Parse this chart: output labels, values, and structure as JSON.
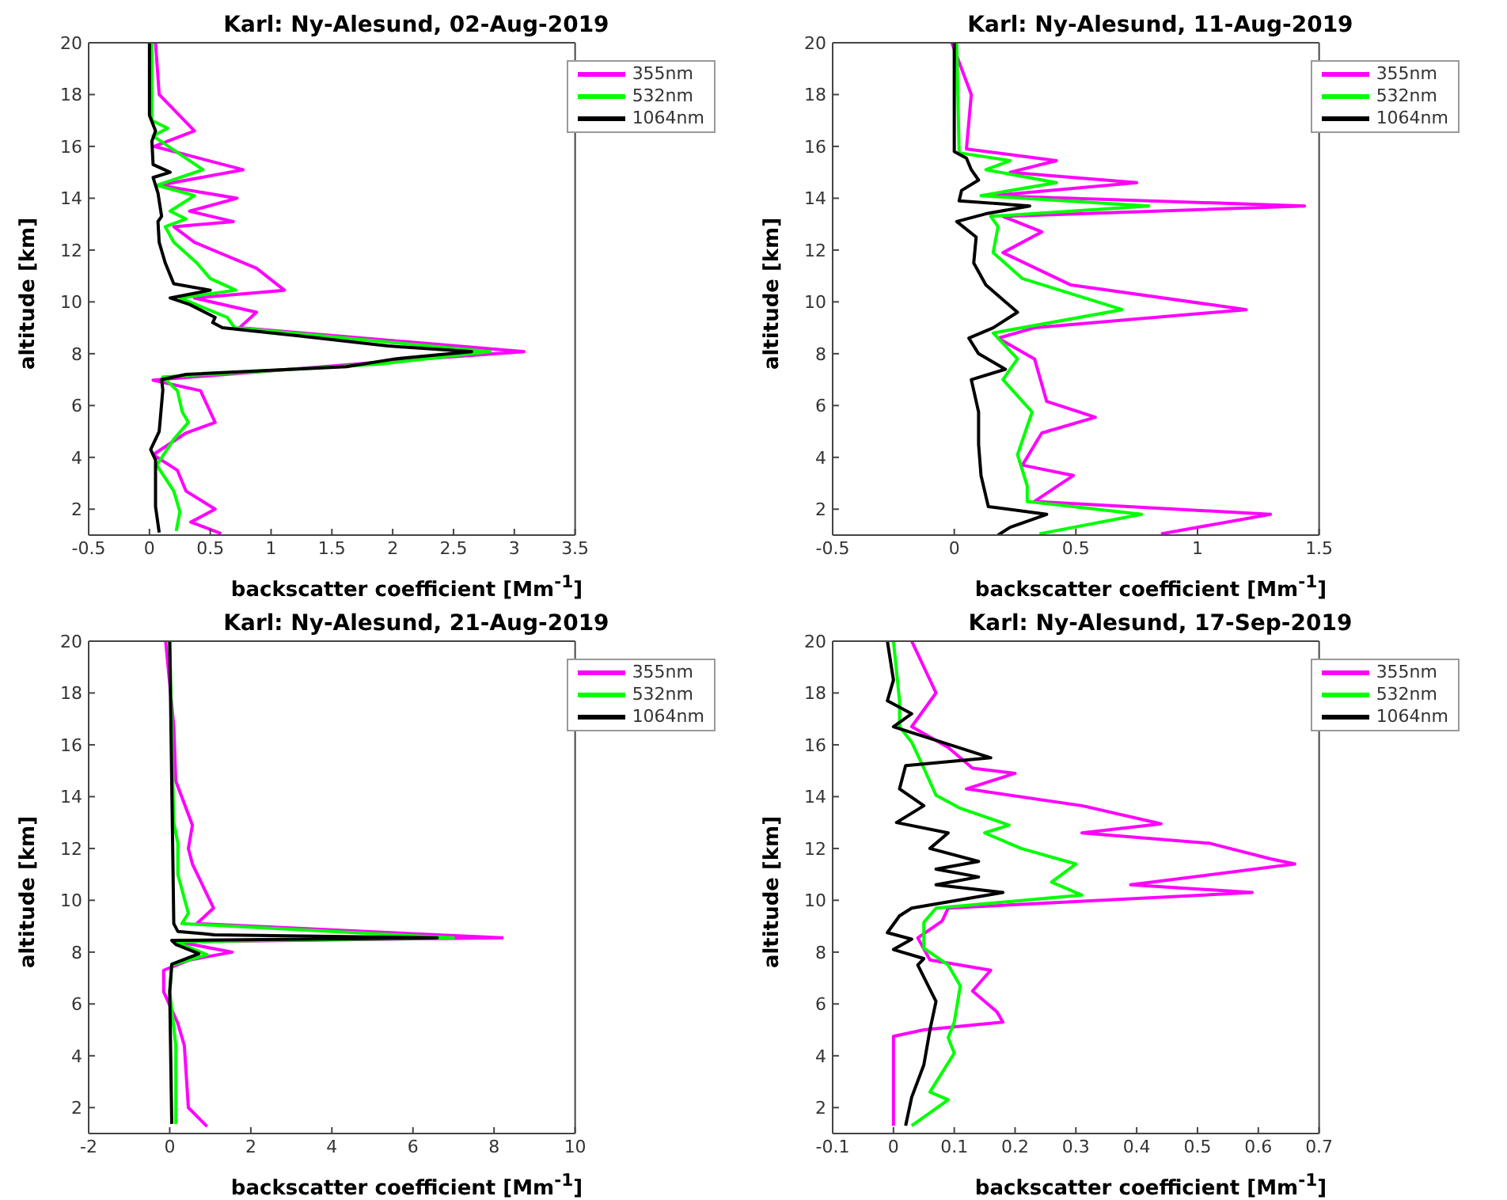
{
  "chart_data": [
    {
      "type": "line",
      "title": "Karl: Ny-Alesund, 02-Aug-2019",
      "xlabel": "backscatter coefficient [Mm$^{-1}$]",
      "ylabel": "altitude [km]",
      "xlim": [
        -0.5,
        3.5
      ],
      "xticks": [
        -0.5,
        0,
        0.5,
        1,
        1.5,
        2,
        2.5,
        3,
        3.5
      ],
      "ylim": [
        1,
        20
      ],
      "yticks": [
        2,
        4,
        6,
        8,
        10,
        12,
        14,
        16,
        18,
        20
      ],
      "legend": "top right",
      "series": [
        {
          "name": "355nm",
          "color": "#ff00ff",
          "x": [
            0.05,
            0.08,
            0.37,
            0.04,
            0.77,
            0.08,
            0.72,
            0.33,
            0.69,
            0.2,
            0.37,
            0.88,
            1.11,
            0.37,
            0.88,
            0.74,
            3.08,
            1.96,
            0.03,
            0.42,
            0.54,
            0.3,
            0.03,
            0.23,
            0.3,
            0.54,
            0.34,
            0.59
          ],
          "values": [
            20,
            18,
            16.6,
            16.0,
            15.1,
            14.5,
            14.0,
            13.5,
            13.1,
            12.9,
            12.3,
            11.3,
            10.45,
            10.15,
            9.6,
            9.0,
            8.08,
            7.7,
            6.98,
            6.57,
            5.35,
            4.94,
            4.1,
            3.5,
            2.7,
            2.0,
            1.5,
            1.06
          ]
        },
        {
          "name": "532nm",
          "color": "#00ff00",
          "x": [
            0.02,
            0.02,
            0.15,
            0.03,
            0.44,
            0.06,
            0.37,
            0.17,
            0.3,
            0.13,
            0.2,
            0.39,
            0.5,
            0.71,
            0.25,
            0.64,
            0.7,
            2.8,
            1.89,
            0.11,
            0.23,
            0.27,
            0.32,
            0.2,
            0.06,
            0.2,
            0.25,
            0.22
          ],
          "values": [
            20,
            17.0,
            16.7,
            16.4,
            15.1,
            14.5,
            14.1,
            13.5,
            13.2,
            12.9,
            12.3,
            11.5,
            10.9,
            10.45,
            10.15,
            9.4,
            9.0,
            8.08,
            7.6,
            7.1,
            6.57,
            5.75,
            5.35,
            4.7,
            3.7,
            2.7,
            1.9,
            1.16
          ]
        },
        {
          "name": "1064nm",
          "color": "#000000",
          "x": [
            0,
            0,
            0,
            0.05,
            0.02,
            0.03,
            0.17,
            0.03,
            0.07,
            0.1,
            0.07,
            0.08,
            0.13,
            0.2,
            0.5,
            0.17,
            0.33,
            0.54,
            0.52,
            0.6,
            1.21,
            1.96,
            2.65,
            2.02,
            1.62,
            0.3,
            0.1,
            0.11,
            0.08,
            0.01,
            0.05,
            0.05,
            0.08
          ],
          "values": [
            20,
            18,
            17.2,
            16.6,
            16.2,
            15.3,
            15.0,
            14.8,
            14.2,
            13.3,
            13.1,
            12.3,
            11.5,
            10.7,
            10.45,
            10.15,
            9.9,
            9.4,
            9.2,
            9.0,
            8.7,
            8.3,
            8.08,
            7.8,
            7.5,
            7.2,
            7.0,
            6.6,
            5.0,
            4.3,
            3.9,
            2.1,
            1.1
          ]
        }
      ]
    },
    {
      "type": "line",
      "title": "Karl: Ny-Alesund, 11-Aug-2019",
      "xlabel": "backscatter coefficient [Mm$^{-1}$]",
      "ylabel": "altitude [km]",
      "xlim": [
        -0.5,
        1.5
      ],
      "xticks": [
        -0.5,
        0,
        0.5,
        1,
        1.5
      ],
      "ylim": [
        1,
        20
      ],
      "yticks": [
        2,
        4,
        6,
        8,
        10,
        12,
        14,
        16,
        18,
        20
      ],
      "legend": "top right",
      "series": [
        {
          "name": "355nm",
          "color": "#ff00ff",
          "x": [
            -0.01,
            0.07,
            0.05,
            0.42,
            0.23,
            0.75,
            0.16,
            1.44,
            0.2,
            0.36,
            0.2,
            0.48,
            1.2,
            0.33,
            0.18,
            0.33,
            0.38,
            0.58,
            0.36,
            0.28,
            0.49,
            0.33,
            1.3,
            0.85
          ],
          "values": [
            20,
            18,
            15.9,
            15.45,
            15.0,
            14.6,
            14.1,
            13.7,
            13.3,
            12.7,
            11.9,
            10.65,
            9.7,
            9.0,
            8.6,
            7.8,
            6.16,
            5.55,
            4.94,
            3.7,
            3.3,
            2.3,
            1.8,
            1.05
          ]
        },
        {
          "name": "532nm",
          "color": "#00ff00",
          "x": [
            0.01,
            0.02,
            0.23,
            0.13,
            0.42,
            0.11,
            0.8,
            0.15,
            0.18,
            0.16,
            0.28,
            0.69,
            0.16,
            0.26,
            0.2,
            0.32,
            0.26,
            0.3,
            0.3,
            0.77,
            0.35
          ],
          "values": [
            20,
            15.75,
            15.45,
            15.1,
            14.6,
            14.1,
            13.7,
            13.3,
            12.9,
            11.9,
            10.9,
            9.7,
            8.8,
            7.8,
            7.0,
            5.75,
            4.1,
            2.9,
            2.3,
            1.8,
            1.05
          ]
        },
        {
          "name": "1064nm",
          "color": "#000000",
          "x": [
            0,
            0,
            0.05,
            0.07,
            0.1,
            0.03,
            0.02,
            0.31,
            0.13,
            0.01,
            0.09,
            0.08,
            0.13,
            0.26,
            0.16,
            0.06,
            0.1,
            0.21,
            0.07,
            0.1,
            0.1,
            0.11,
            0.14,
            0.38,
            0.23,
            0.18
          ],
          "values": [
            20,
            15.8,
            15.55,
            15.1,
            14.7,
            14.3,
            13.9,
            13.7,
            13.4,
            13.1,
            12.5,
            11.5,
            10.65,
            9.6,
            9.0,
            8.6,
            8.0,
            7.4,
            7.0,
            5.75,
            4.5,
            3.3,
            2.1,
            1.8,
            1.3,
            1.0
          ]
        }
      ]
    },
    {
      "type": "line",
      "title": "Karl: Ny-Alesund, 21-Aug-2019",
      "xlabel": "backscatter coefficient [Mm$^{-1}$]",
      "ylabel": "altitude [km]",
      "xlim": [
        -2,
        10
      ],
      "xticks": [
        -2,
        0,
        2,
        4,
        6,
        8,
        10
      ],
      "ylim": [
        1,
        20
      ],
      "yticks": [
        2,
        4,
        6,
        8,
        10,
        12,
        14,
        16,
        18,
        20
      ],
      "legend": "top right",
      "series": [
        {
          "name": "355nm",
          "color": "#ff00ff",
          "x": [
            -0.1,
            0.1,
            0.15,
            0.56,
            0.46,
            0.56,
            1.08,
            0.67,
            8.2,
            0.2,
            1.54,
            0.5,
            -0.15,
            -0.15,
            0.2,
            0.36,
            0.41,
            0.46,
            0.92
          ],
          "values": [
            20,
            16.7,
            14.6,
            12.9,
            12.0,
            11.4,
            9.7,
            9.1,
            8.55,
            8.4,
            8.0,
            7.7,
            7.3,
            6.47,
            5.25,
            4.4,
            3.2,
            2.0,
            1.27
          ]
        },
        {
          "name": "532nm",
          "color": "#00ff00",
          "x": [
            0,
            0.1,
            0.2,
            0.2,
            0.46,
            0.3,
            7.0,
            0.15,
            0.92,
            0.05,
            0,
            0.15,
            0.15
          ],
          "values": [
            20,
            13.0,
            12.2,
            11.0,
            9.5,
            9.1,
            8.55,
            8.4,
            7.9,
            7.5,
            6.47,
            4.4,
            1.37
          ]
        },
        {
          "name": "1064nm",
          "color": "#000000",
          "x": [
            0,
            0.1,
            0.2,
            1.1,
            6.6,
            0.05,
            0.15,
            0.72,
            0.05,
            0,
            0.05
          ],
          "values": [
            20,
            9.1,
            8.8,
            8.67,
            8.55,
            8.45,
            8.3,
            7.94,
            7.53,
            6.47,
            1.37
          ]
        }
      ]
    },
    {
      "type": "line",
      "title": "Karl: Ny-Alesund, 17-Sep-2019",
      "xlabel": "backscatter coefficient [Mm$^{-1}$]",
      "ylabel": "altitude [km]",
      "xlim": [
        -0.1,
        0.7
      ],
      "xticks": [
        -0.1,
        0,
        0.1,
        0.2,
        0.3,
        0.4,
        0.5,
        0.6,
        0.7
      ],
      "ylim": [
        1,
        20
      ],
      "yticks": [
        2,
        4,
        6,
        8,
        10,
        12,
        14,
        16,
        18,
        20
      ],
      "legend": "top right",
      "series": [
        {
          "name": "355nm",
          "color": "#ff00ff",
          "x": [
            0.03,
            0.07,
            0.03,
            0.09,
            0.13,
            0.2,
            0.12,
            0.31,
            0.44,
            0.31,
            0.52,
            0.62,
            0.66,
            0.39,
            0.59,
            0.09,
            0.08,
            0.04,
            0.06,
            0.16,
            0.13,
            0.17,
            0.18,
            0.05,
            0,
            0
          ],
          "values": [
            20,
            18,
            16.7,
            15.9,
            15.1,
            14.9,
            14.3,
            13.65,
            12.95,
            12.6,
            12.2,
            11.6,
            11.4,
            10.6,
            10.3,
            9.7,
            9.2,
            8.55,
            7.7,
            7.3,
            6.5,
            5.7,
            5.3,
            5.0,
            4.75,
            1.3
          ]
        },
        {
          "name": "532nm",
          "color": "#00ff00",
          "x": [
            0,
            0.01,
            0.01,
            0.03,
            0.05,
            0.07,
            0.11,
            0.19,
            0.15,
            0.21,
            0.3,
            0.26,
            0.31,
            0.07,
            0.05,
            0.05,
            0.09,
            0.11,
            0.1,
            0.09,
            0.1,
            0.06,
            0.09,
            0.06,
            0.03
          ],
          "values": [
            20,
            17.7,
            16.7,
            16.1,
            15.1,
            14.05,
            13.55,
            12.9,
            12.6,
            12.0,
            11.4,
            10.7,
            10.2,
            9.7,
            9.15,
            8.15,
            7.5,
            6.7,
            5.3,
            4.7,
            4.1,
            2.6,
            2.3,
            1.8,
            1.3
          ]
        },
        {
          "name": "1064nm",
          "color": "#000000",
          "x": [
            -0.01,
            0,
            -0.01,
            0.03,
            0,
            0.16,
            0.02,
            0.01,
            0.05,
            0.005,
            0.09,
            0.06,
            0.14,
            0.07,
            0.14,
            0.07,
            0.18,
            0.03,
            0.01,
            -0.01,
            0.03,
            0,
            0.05,
            0.04,
            0.07,
            0.06,
            0.05,
            0.03,
            0.02
          ],
          "values": [
            20,
            18.5,
            17.7,
            17.2,
            16.7,
            15.5,
            15.2,
            14.3,
            13.65,
            13.0,
            12.6,
            12.0,
            11.5,
            11.2,
            10.9,
            10.6,
            10.3,
            9.7,
            9.4,
            8.75,
            8.5,
            8.1,
            7.75,
            7.5,
            6.1,
            5.0,
            3.65,
            2.4,
            1.3
          ]
        }
      ]
    }
  ]
}
